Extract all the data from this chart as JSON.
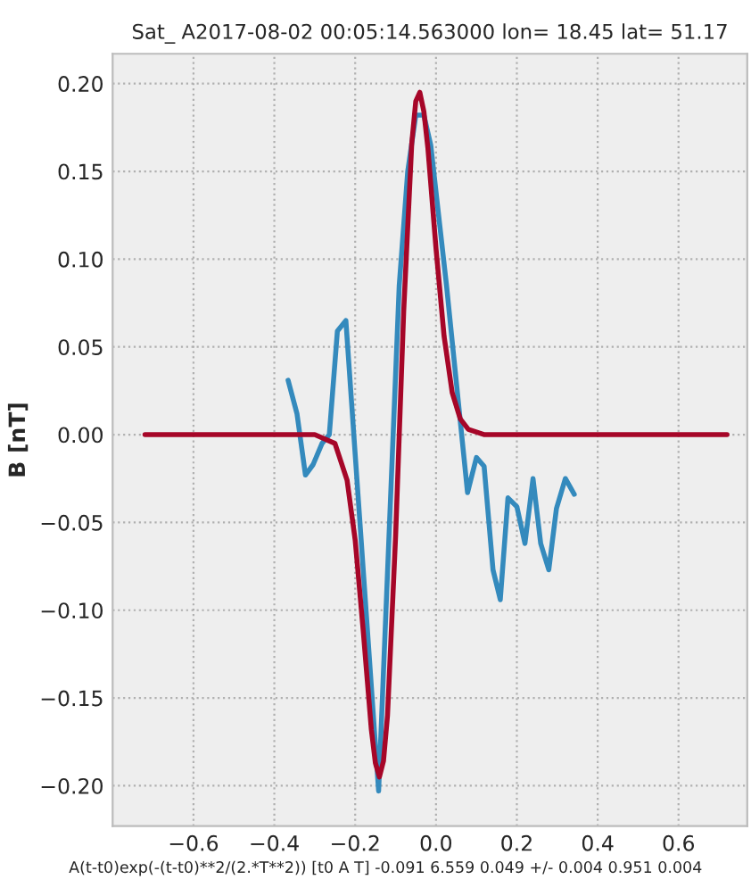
{
  "chart_data": {
    "type": "line",
    "title": "Sat_ A2017-08-02 00:05:14.563000 lon= 18.45 lat= 51.17",
    "xlabel": "A(t-t0)exp(-(t-t0)**2/(2.*T**2)) [t0 A T] -0.091 6.559 0.049 +/- 0.004 0.951 0.004",
    "ylabel": "B [nT]",
    "series": [
      {
        "color": "#348abd",
        "x": [
          -0.366,
          -0.344,
          -0.323,
          -0.304,
          -0.282,
          -0.264,
          -0.244,
          -0.223,
          -0.142,
          -0.091,
          -0.07,
          -0.05,
          -0.03,
          -0.013,
          0.026,
          0.078,
          0.1,
          0.119,
          0.141,
          0.159,
          0.178,
          0.2,
          0.22,
          0.24,
          0.259,
          0.279,
          0.298,
          0.32,
          0.342
        ],
        "values": [
          0.031,
          0.012,
          -0.023,
          -0.017,
          -0.005,
          0.0,
          0.059,
          0.065,
          -0.203,
          0.085,
          0.15,
          0.182,
          0.182,
          0.165,
          0.085,
          -0.033,
          -0.013,
          -0.018,
          -0.077,
          -0.094,
          -0.036,
          -0.041,
          -0.062,
          -0.025,
          -0.062,
          -0.077,
          -0.042,
          -0.025,
          -0.034
        ]
      },
      {
        "color": "#a60628",
        "x": [
          -0.72,
          -0.3,
          -0.25,
          -0.22,
          -0.2,
          -0.18,
          -0.16,
          -0.15,
          -0.14,
          -0.13,
          -0.12,
          -0.1,
          -0.08,
          -0.06,
          -0.05,
          -0.04,
          -0.03,
          -0.02,
          0.0,
          0.02,
          0.04,
          0.06,
          0.08,
          0.12,
          0.72
        ],
        "values": [
          0.0,
          0.0,
          -0.005,
          -0.026,
          -0.06,
          -0.112,
          -0.168,
          -0.187,
          -0.195,
          -0.186,
          -0.16,
          -0.058,
          0.07,
          0.166,
          0.19,
          0.195,
          0.184,
          0.163,
          0.106,
          0.056,
          0.024,
          0.009,
          0.003,
          0.0,
          0.0
        ]
      }
    ],
    "xlim": [
      -0.8,
      0.77
    ],
    "ylim": [
      -0.223,
      0.217
    ],
    "xticks": [
      {
        "value": -0.6,
        "label": "−0.6"
      },
      {
        "value": -0.4,
        "label": "−0.4"
      },
      {
        "value": -0.2,
        "label": "−0.2"
      },
      {
        "value": 0.0,
        "label": "0.0"
      },
      {
        "value": 0.2,
        "label": "0.2"
      },
      {
        "value": 0.4,
        "label": "0.4"
      },
      {
        "value": 0.6,
        "label": "0.6"
      }
    ],
    "yticks": [
      {
        "value": -0.2,
        "label": "−0.20"
      },
      {
        "value": -0.15,
        "label": "−0.15"
      },
      {
        "value": -0.1,
        "label": "−0.10"
      },
      {
        "value": -0.05,
        "label": "−0.05"
      },
      {
        "value": 0.0,
        "label": "0.00"
      },
      {
        "value": 0.05,
        "label": "0.05"
      },
      {
        "value": 0.1,
        "label": "0.10"
      },
      {
        "value": 0.15,
        "label": "0.15"
      },
      {
        "value": 0.2,
        "label": "0.20"
      }
    ],
    "grid": true
  }
}
